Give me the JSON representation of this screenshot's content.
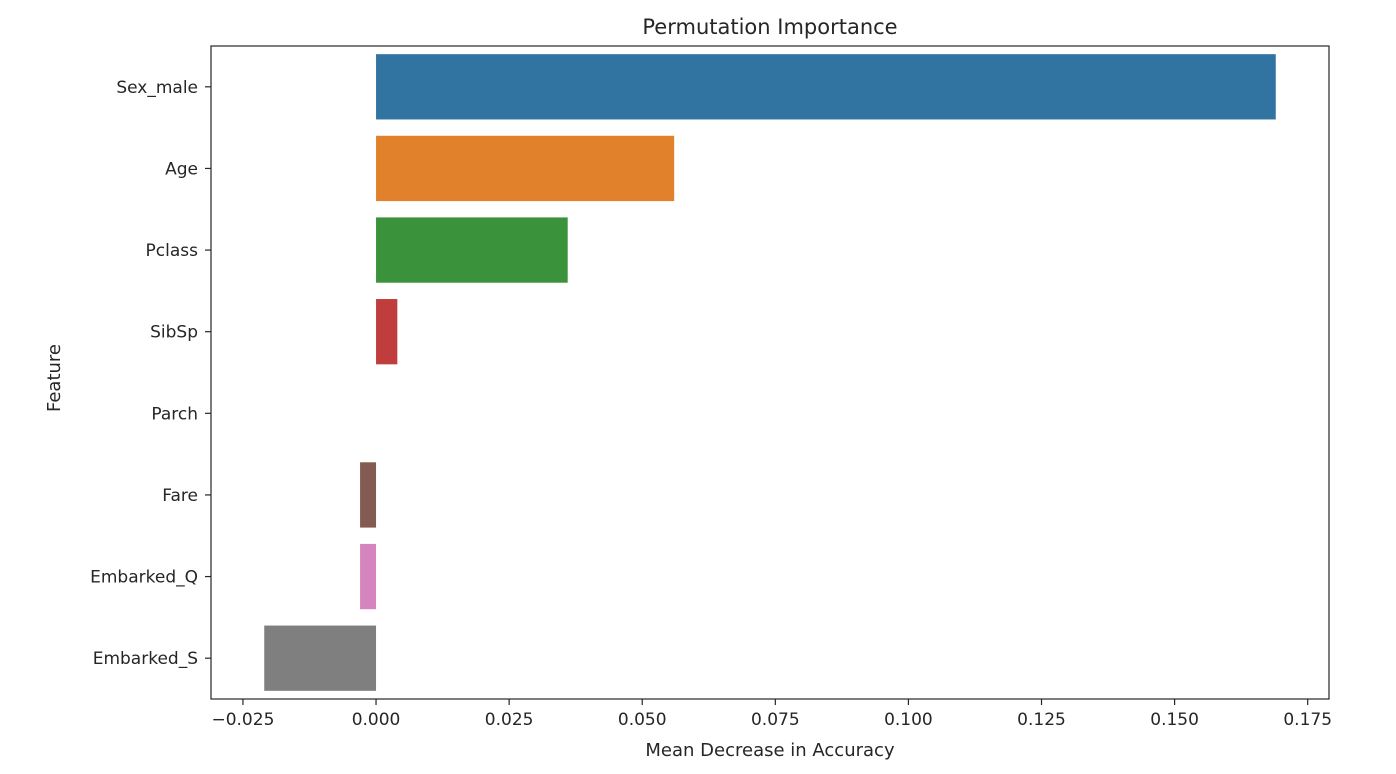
{
  "chart_data": {
    "type": "bar",
    "orientation": "horizontal",
    "title": "Permutation Importance",
    "xlabel": "Mean Decrease in Accuracy",
    "ylabel": "Feature",
    "categories": [
      "Sex_male",
      "Age",
      "Pclass",
      "SibSp",
      "Parch",
      "Fare",
      "Embarked_Q",
      "Embarked_S"
    ],
    "values": [
      0.169,
      0.056,
      0.036,
      0.004,
      0.0,
      -0.003,
      -0.003,
      -0.021
    ],
    "colors": [
      "#3274a1",
      "#e1812c",
      "#3a923a",
      "#c03d3e",
      "#9372b2",
      "#845b53",
      "#d684bd",
      "#7f7f7f"
    ],
    "xlim": [
      -0.031,
      0.179
    ],
    "xticks": [
      -0.025,
      0.0,
      0.025,
      0.05,
      0.075,
      0.1,
      0.125,
      0.15,
      0.175
    ],
    "xtick_labels": [
      "−0.025",
      "0.000",
      "0.025",
      "0.050",
      "0.075",
      "0.100",
      "0.125",
      "0.150",
      "0.175"
    ],
    "grid": false,
    "legend": "none"
  }
}
